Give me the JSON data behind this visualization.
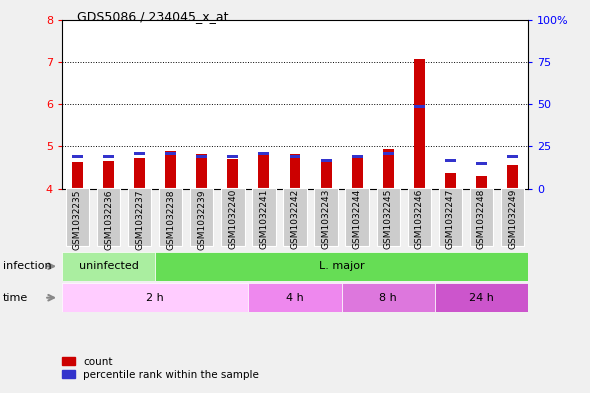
{
  "title": "GDS5086 / 234045_x_at",
  "samples": [
    "GSM1032235",
    "GSM1032236",
    "GSM1032237",
    "GSM1032238",
    "GSM1032239",
    "GSM1032240",
    "GSM1032241",
    "GSM1032242",
    "GSM1032243",
    "GSM1032244",
    "GSM1032245",
    "GSM1032246",
    "GSM1032247",
    "GSM1032248",
    "GSM1032249"
  ],
  "count_values": [
    4.62,
    4.65,
    4.73,
    4.88,
    4.83,
    4.71,
    4.87,
    4.82,
    4.68,
    4.73,
    4.93,
    7.08,
    4.38,
    4.3,
    4.55
  ],
  "percentile_values": [
    18,
    18,
    20,
    20,
    18,
    18,
    20,
    18,
    16,
    18,
    20,
    48,
    16,
    14,
    18
  ],
  "ylim_left": [
    4.0,
    8.0
  ],
  "ylim_right": [
    0,
    100
  ],
  "yticks_left": [
    4,
    5,
    6,
    7,
    8
  ],
  "yticks_right": [
    0,
    25,
    50,
    75,
    100
  ],
  "ytick_labels_right": [
    "0",
    "25",
    "50",
    "75",
    "100%"
  ],
  "bar_color_red": "#cc0000",
  "bar_color_blue": "#3333cc",
  "infection_groups": [
    {
      "label": "uninfected",
      "start": 0,
      "end": 3,
      "color": "#aaeea0"
    },
    {
      "label": "L. major",
      "start": 3,
      "end": 15,
      "color": "#66dd55"
    }
  ],
  "time_groups": [
    {
      "label": "2 h",
      "start": 0,
      "end": 6,
      "color": "#ffccff"
    },
    {
      "label": "4 h",
      "start": 6,
      "end": 9,
      "color": "#ee88ee"
    },
    {
      "label": "8 h",
      "start": 9,
      "end": 12,
      "color": "#dd77dd"
    },
    {
      "label": "24 h",
      "start": 12,
      "end": 15,
      "color": "#cc55cc"
    }
  ],
  "legend_count_label": "count",
  "legend_percentile_label": "percentile rank within the sample",
  "fig_bg_color": "#f0f0f0",
  "plot_bg_color": "#ffffff",
  "tick_label_bg": "#cccccc",
  "infection_label": "infection",
  "time_label": "time",
  "bar_width": 0.35
}
